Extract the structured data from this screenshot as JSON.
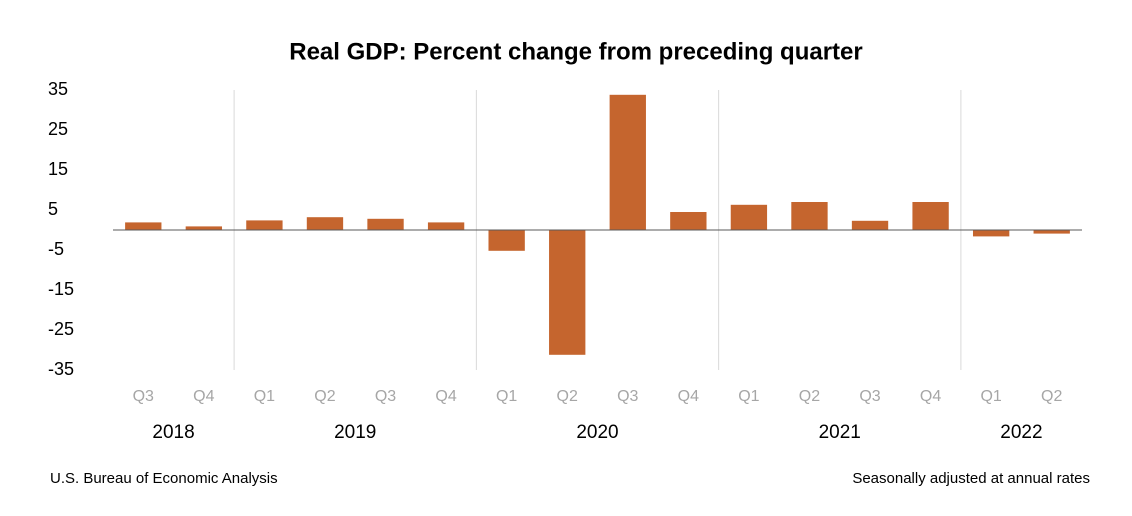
{
  "chart_data": {
    "type": "bar",
    "title": "Real GDP:  Percent change from preceding quarter",
    "groups": [
      {
        "name": "2018",
        "categories": [
          "Q3",
          "Q4"
        ]
      },
      {
        "name": "2019",
        "categories": [
          "Q1",
          "Q2",
          "Q3",
          "Q4"
        ]
      },
      {
        "name": "2020",
        "categories": [
          "Q1",
          "Q2",
          "Q3",
          "Q4"
        ]
      },
      {
        "name": "2021",
        "categories": [
          "Q1",
          "Q2",
          "Q3",
          "Q4"
        ]
      },
      {
        "name": "2022",
        "categories": [
          "Q1",
          "Q2"
        ]
      }
    ],
    "values": [
      1.9,
      0.9,
      2.4,
      3.2,
      2.8,
      1.9,
      -5.2,
      -31.2,
      33.8,
      4.5,
      6.3,
      7.0,
      2.3,
      7.0,
      -1.6,
      -0.9
    ],
    "color": "#c5652e",
    "ylim": [
      -35,
      35
    ],
    "yticks": [
      35,
      25,
      15,
      5,
      -5,
      -15,
      -25,
      -35
    ],
    "source": "U.S. Bureau of Economic Analysis",
    "note": "Seasonally adjusted at annual rates"
  }
}
